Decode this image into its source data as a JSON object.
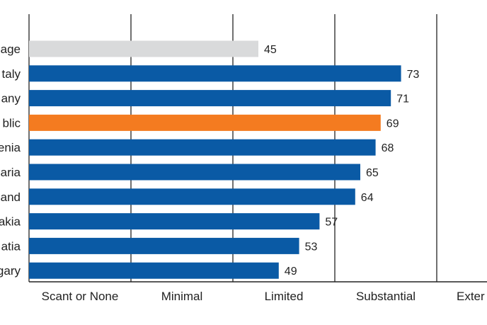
{
  "chart_data": {
    "type": "bar",
    "orientation": "horizontal",
    "categories": [
      "age",
      "taly",
      "any",
      "blic",
      "enia",
      "aria",
      "and",
      "akia",
      "atia",
      "gary"
    ],
    "values": [
      45,
      73,
      71,
      69,
      68,
      65,
      64,
      57,
      53,
      49
    ],
    "bar_colors": [
      "#d9dadb",
      "#0a5aa5",
      "#0a5aa5",
      "#f47b20",
      "#0a5aa5",
      "#0a5aa5",
      "#0a5aa5",
      "#0a5aa5",
      "#0a5aa5",
      "#0a5aa5"
    ],
    "data_labels": [
      "45",
      "73",
      "71",
      "69",
      "68",
      "65",
      "64",
      "57",
      "53",
      "49"
    ],
    "xlim": [
      0,
      100
    ],
    "bands": [
      {
        "label": "Scant or None",
        "start": 0,
        "end": 20
      },
      {
        "label": "Minimal",
        "start": 20,
        "end": 40
      },
      {
        "label": "Limited",
        "start": 40,
        "end": 60
      },
      {
        "label": "Substantial",
        "start": 60,
        "end": 80
      },
      {
        "label": "Exter",
        "start": 80,
        "end": 100
      }
    ],
    "title": "",
    "xlabel": "",
    "ylabel": "",
    "legend": "none",
    "grid": "vertical"
  }
}
